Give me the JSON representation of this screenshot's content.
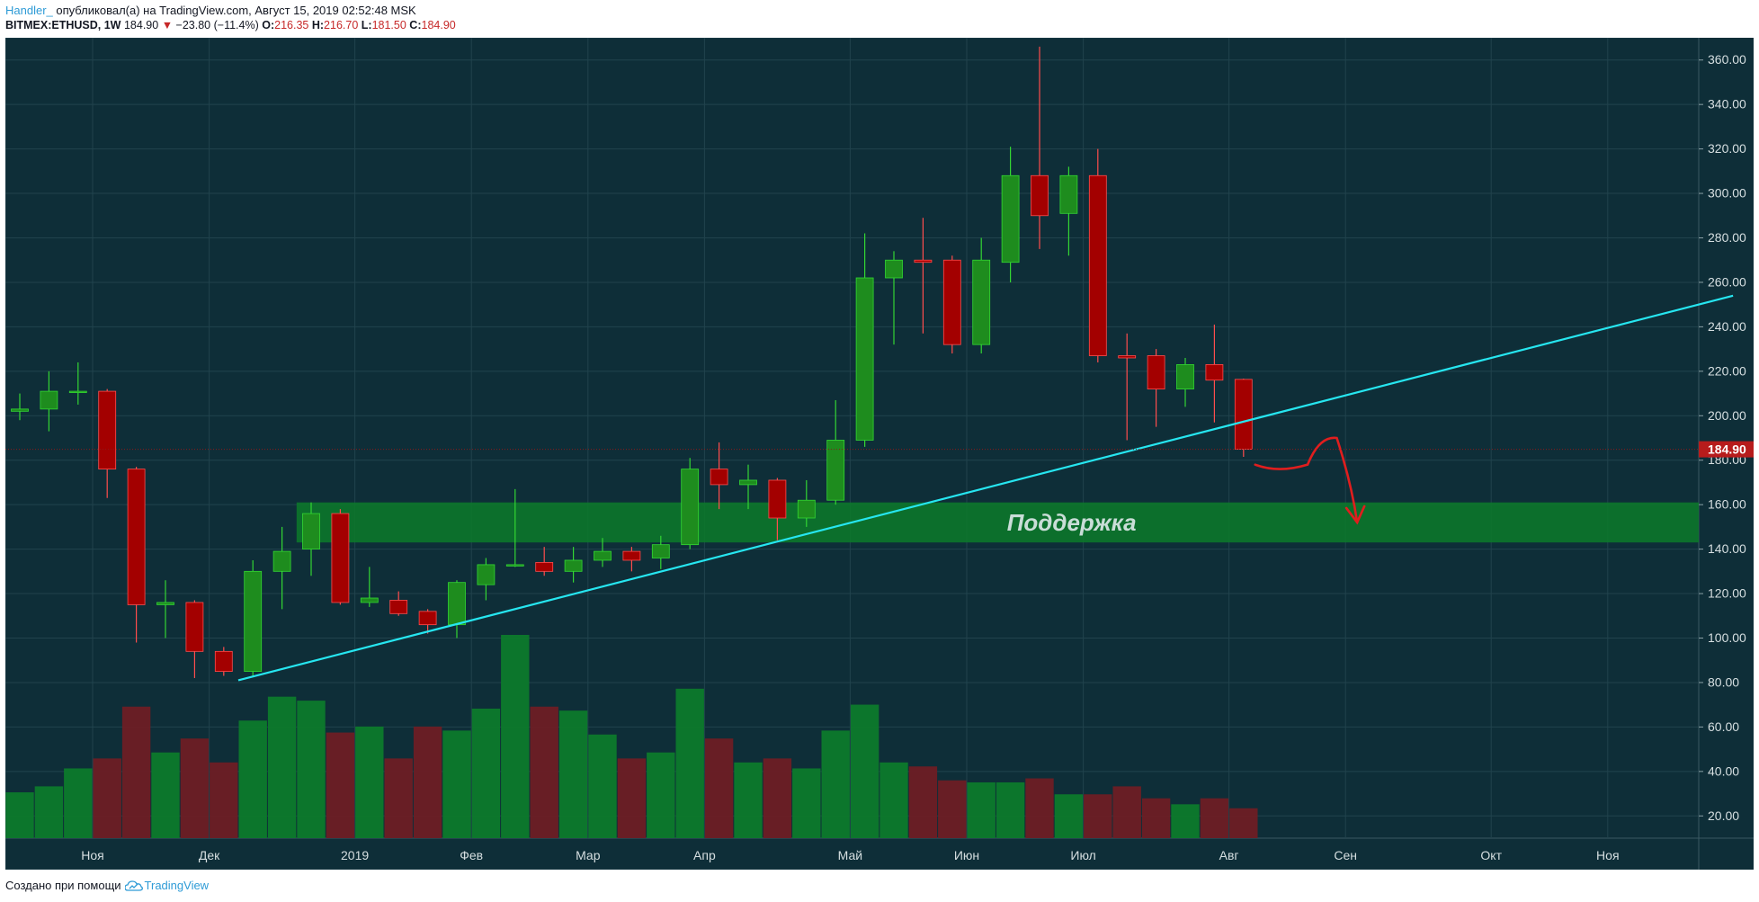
{
  "header": {
    "user": "Handler_",
    "published": "опубликовал(а) на TradingView.com, Август 15, 2019 02:52:48 MSK",
    "symbol": "BITMEX:ETHUSD, 1W",
    "last": "184.90",
    "change": "−23.80 (−11.4%)",
    "o_label": "O:",
    "o_value": "216.35",
    "h_label": "H:",
    "h_value": "216.70",
    "l_label": "L:",
    "l_value": "181.50",
    "c_label": "C:",
    "c_value": "184.90"
  },
  "footer": {
    "made_with": "Создано при помощи",
    "brand": "TradingView"
  },
  "colors": {
    "background": "#0e2e38",
    "up": "#1e8c1e",
    "down": "#a30000",
    "trendline": "#26e6f0",
    "support_zone": "#0c7a2a",
    "last_price": "#b71c1c"
  },
  "chart_data": {
    "type": "candlestick",
    "interval": "1W",
    "y_axis": {
      "ylim": [
        10,
        370
      ],
      "ticks": [
        20,
        40,
        60,
        80,
        100,
        120,
        140,
        160,
        180,
        200,
        220,
        240,
        260,
        280,
        300,
        320,
        340,
        360
      ],
      "tick_labels": [
        "20.00",
        "40.00",
        "60.00",
        "80.00",
        "100.00",
        "120.00",
        "140.00",
        "160.00",
        "180.00",
        "200.00",
        "220.00",
        "240.00",
        "260.00",
        "280.00",
        "300.00",
        "320.00",
        "340.00",
        "360.00"
      ],
      "position": "right"
    },
    "x_axis": {
      "labels": [
        "Ноя",
        "Дек",
        "2019",
        "Фев",
        "Мар",
        "Апр",
        "Май",
        "Июн",
        "Июл",
        "Авг",
        "Сен",
        "Окт",
        "Ноя"
      ],
      "label_slots": [
        2.5,
        6.5,
        11.5,
        15.5,
        19.5,
        23.5,
        28.5,
        32.5,
        36.5,
        41.5,
        45.5,
        50.5,
        54.5
      ]
    },
    "last_price_label": "184.90",
    "candles": [
      {
        "o": 202,
        "h": 210,
        "l": 198,
        "c": 203,
        "vol": 23
      },
      {
        "o": 203,
        "h": 220,
        "l": 193,
        "c": 211,
        "vol": 26
      },
      {
        "o": 211,
        "h": 224,
        "l": 205,
        "c": 211,
        "vol": 35
      },
      {
        "o": 211,
        "h": 212,
        "l": 163,
        "c": 176,
        "vol": 40
      },
      {
        "o": 176,
        "h": 177,
        "l": 98,
        "c": 115,
        "vol": 66
      },
      {
        "o": 115,
        "h": 126,
        "l": 100,
        "c": 116,
        "vol": 43
      },
      {
        "o": 116,
        "h": 117,
        "l": 82,
        "c": 94,
        "vol": 50
      },
      {
        "o": 94,
        "h": 96,
        "l": 83,
        "c": 85,
        "vol": 38
      },
      {
        "o": 85,
        "h": 135,
        "l": 83,
        "c": 130,
        "vol": 59
      },
      {
        "o": 130,
        "h": 150,
        "l": 113,
        "c": 139,
        "vol": 71
      },
      {
        "o": 140,
        "h": 161,
        "l": 128,
        "c": 156,
        "vol": 69
      },
      {
        "o": 156,
        "h": 158,
        "l": 115,
        "c": 116,
        "vol": 53
      },
      {
        "o": 116,
        "h": 132,
        "l": 114,
        "c": 118,
        "vol": 56
      },
      {
        "o": 117,
        "h": 121,
        "l": 110,
        "c": 111,
        "vol": 40
      },
      {
        "o": 112,
        "h": 113,
        "l": 102,
        "c": 106,
        "vol": 56
      },
      {
        "o": 106,
        "h": 126,
        "l": 100,
        "c": 125,
        "vol": 54
      },
      {
        "o": 124,
        "h": 136,
        "l": 117,
        "c": 133,
        "vol": 65
      },
      {
        "o": 133,
        "h": 167,
        "l": 132,
        "c": 133,
        "vol": 102
      },
      {
        "o": 134,
        "h": 141,
        "l": 128,
        "c": 130,
        "vol": 66
      },
      {
        "o": 130,
        "h": 141,
        "l": 125,
        "c": 135,
        "vol": 64
      },
      {
        "o": 135,
        "h": 145,
        "l": 132,
        "c": 139,
        "vol": 52
      },
      {
        "o": 139,
        "h": 141,
        "l": 130,
        "c": 135,
        "vol": 40
      },
      {
        "o": 136,
        "h": 146,
        "l": 131,
        "c": 142,
        "vol": 43
      },
      {
        "o": 142,
        "h": 181,
        "l": 140,
        "c": 176,
        "vol": 75
      },
      {
        "o": 176,
        "h": 188,
        "l": 158,
        "c": 169,
        "vol": 50
      },
      {
        "o": 169,
        "h": 178,
        "l": 158,
        "c": 171,
        "vol": 38
      },
      {
        "o": 171,
        "h": 172,
        "l": 144,
        "c": 154,
        "vol": 40
      },
      {
        "o": 154,
        "h": 171,
        "l": 150,
        "c": 162,
        "vol": 35
      },
      {
        "o": 162,
        "h": 207,
        "l": 160,
        "c": 189,
        "vol": 54
      },
      {
        "o": 189,
        "h": 282,
        "l": 186,
        "c": 262,
        "vol": 67
      },
      {
        "o": 262,
        "h": 274,
        "l": 232,
        "c": 270,
        "vol": 38
      },
      {
        "o": 270,
        "h": 289,
        "l": 237,
        "c": 269,
        "vol": 36
      },
      {
        "o": 270,
        "h": 272,
        "l": 228,
        "c": 232,
        "vol": 29
      },
      {
        "o": 232,
        "h": 280,
        "l": 228,
        "c": 270,
        "vol": 28
      },
      {
        "o": 269,
        "h": 321,
        "l": 260,
        "c": 308,
        "vol": 28
      },
      {
        "o": 308,
        "h": 366,
        "l": 275,
        "c": 290,
        "vol": 30
      },
      {
        "o": 291,
        "h": 312,
        "l": 272,
        "c": 308,
        "vol": 22
      },
      {
        "o": 308,
        "h": 320,
        "l": 224,
        "c": 227,
        "vol": 22
      },
      {
        "o": 227,
        "h": 237,
        "l": 189,
        "c": 226,
        "vol": 26
      },
      {
        "o": 227,
        "h": 230,
        "l": 195,
        "c": 212,
        "vol": 20
      },
      {
        "o": 212,
        "h": 226,
        "l": 204,
        "c": 223,
        "vol": 17
      },
      {
        "o": 223,
        "h": 241,
        "l": 197,
        "c": 216,
        "vol": 20
      },
      {
        "o": 216.35,
        "h": 216.7,
        "l": 181.5,
        "c": 184.9,
        "vol": 15
      }
    ],
    "trendline": {
      "from": {
        "slot": 7.5,
        "price": 81
      },
      "to": {
        "slot": 58.8,
        "price": 254
      }
    },
    "support_zone": {
      "from_slot": 9.5,
      "low": 143,
      "high": 161,
      "label": "Поддержка"
    },
    "projection_arrow": {
      "points": [
        {
          "slot": 42.4,
          "price": 178
        },
        {
          "slot": 43.2,
          "price": 174
        },
        {
          "slot": 44.2,
          "price": 178
        },
        {
          "slot": 44.6,
          "price": 191
        },
        {
          "slot": 45.2,
          "price": 190
        },
        {
          "slot": 45.7,
          "price": 170
        },
        {
          "slot": 45.9,
          "price": 152
        }
      ]
    }
  }
}
